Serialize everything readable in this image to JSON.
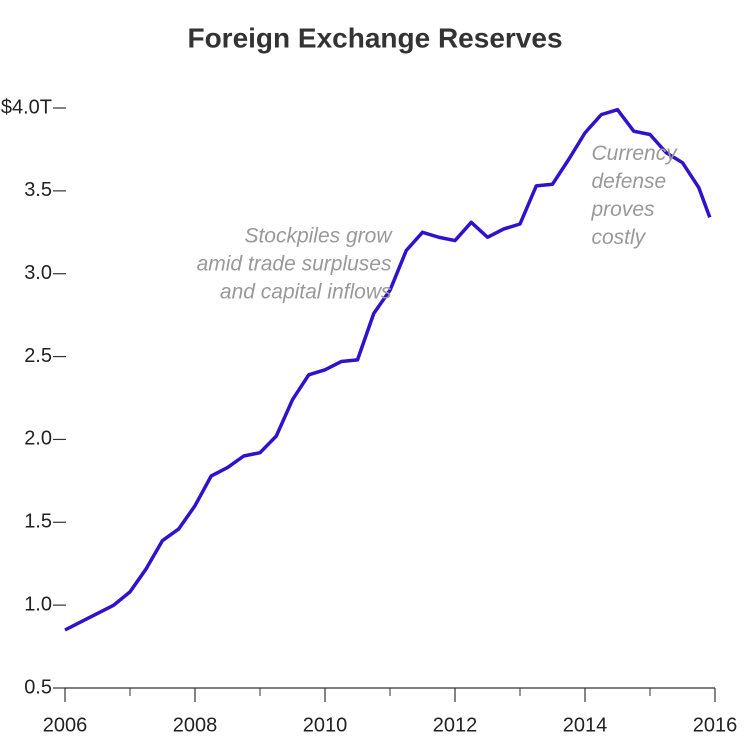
{
  "chart_data": {
    "type": "line",
    "title": "Foreign Exchange Reserves",
    "x": [
      2006,
      2006.25,
      2006.5,
      2006.75,
      2007,
      2007.25,
      2007.5,
      2007.75,
      2008,
      2008.25,
      2008.5,
      2008.75,
      2009,
      2009.25,
      2009.5,
      2009.75,
      2010,
      2010.25,
      2010.5,
      2010.75,
      2011,
      2011.25,
      2011.5,
      2011.75,
      2012,
      2012.25,
      2012.5,
      2012.75,
      2013,
      2013.25,
      2013.5,
      2013.75,
      2014,
      2014.25,
      2014.5,
      2014.75,
      2015,
      2015.25,
      2015.5,
      2015.75,
      2015.92
    ],
    "series": [
      {
        "name": "Reserves",
        "color": "#3311cc",
        "values": [
          0.85,
          0.9,
          0.95,
          1.0,
          1.08,
          1.22,
          1.39,
          1.46,
          1.6,
          1.78,
          1.83,
          1.9,
          1.92,
          2.02,
          2.24,
          2.39,
          2.42,
          2.47,
          2.48,
          2.76,
          2.9,
          3.14,
          3.25,
          3.22,
          3.2,
          3.31,
          3.22,
          3.27,
          3.3,
          3.53,
          3.54,
          3.69,
          3.85,
          3.96,
          3.99,
          3.86,
          3.84,
          3.73,
          3.67,
          3.52,
          3.34
        ]
      }
    ],
    "xlim": [
      2006,
      2016
    ],
    "xticks": [
      2006,
      2008,
      2010,
      2012,
      2014,
      2016
    ],
    "ylim": [
      0.5,
      4
    ],
    "yticks": [
      0.5,
      {
        "value": 1,
        "label": "1.0"
      },
      1.5,
      {
        "value": 2,
        "label": "2.0"
      },
      2.5,
      {
        "value": 3,
        "label": "3.0"
      },
      3.5,
      {
        "value": 4,
        "label": "$4.0T"
      }
    ],
    "annotations": [
      {
        "lines": [
          "Stockpiles grow",
          "amid trade surpluses",
          "and capital inflows"
        ],
        "x": 2010.5,
        "y": 3.1
      },
      {
        "lines": [
          "Currency",
          "defense",
          "proves",
          "costly"
        ],
        "x": 2014.1,
        "y": 3.6
      }
    ]
  }
}
